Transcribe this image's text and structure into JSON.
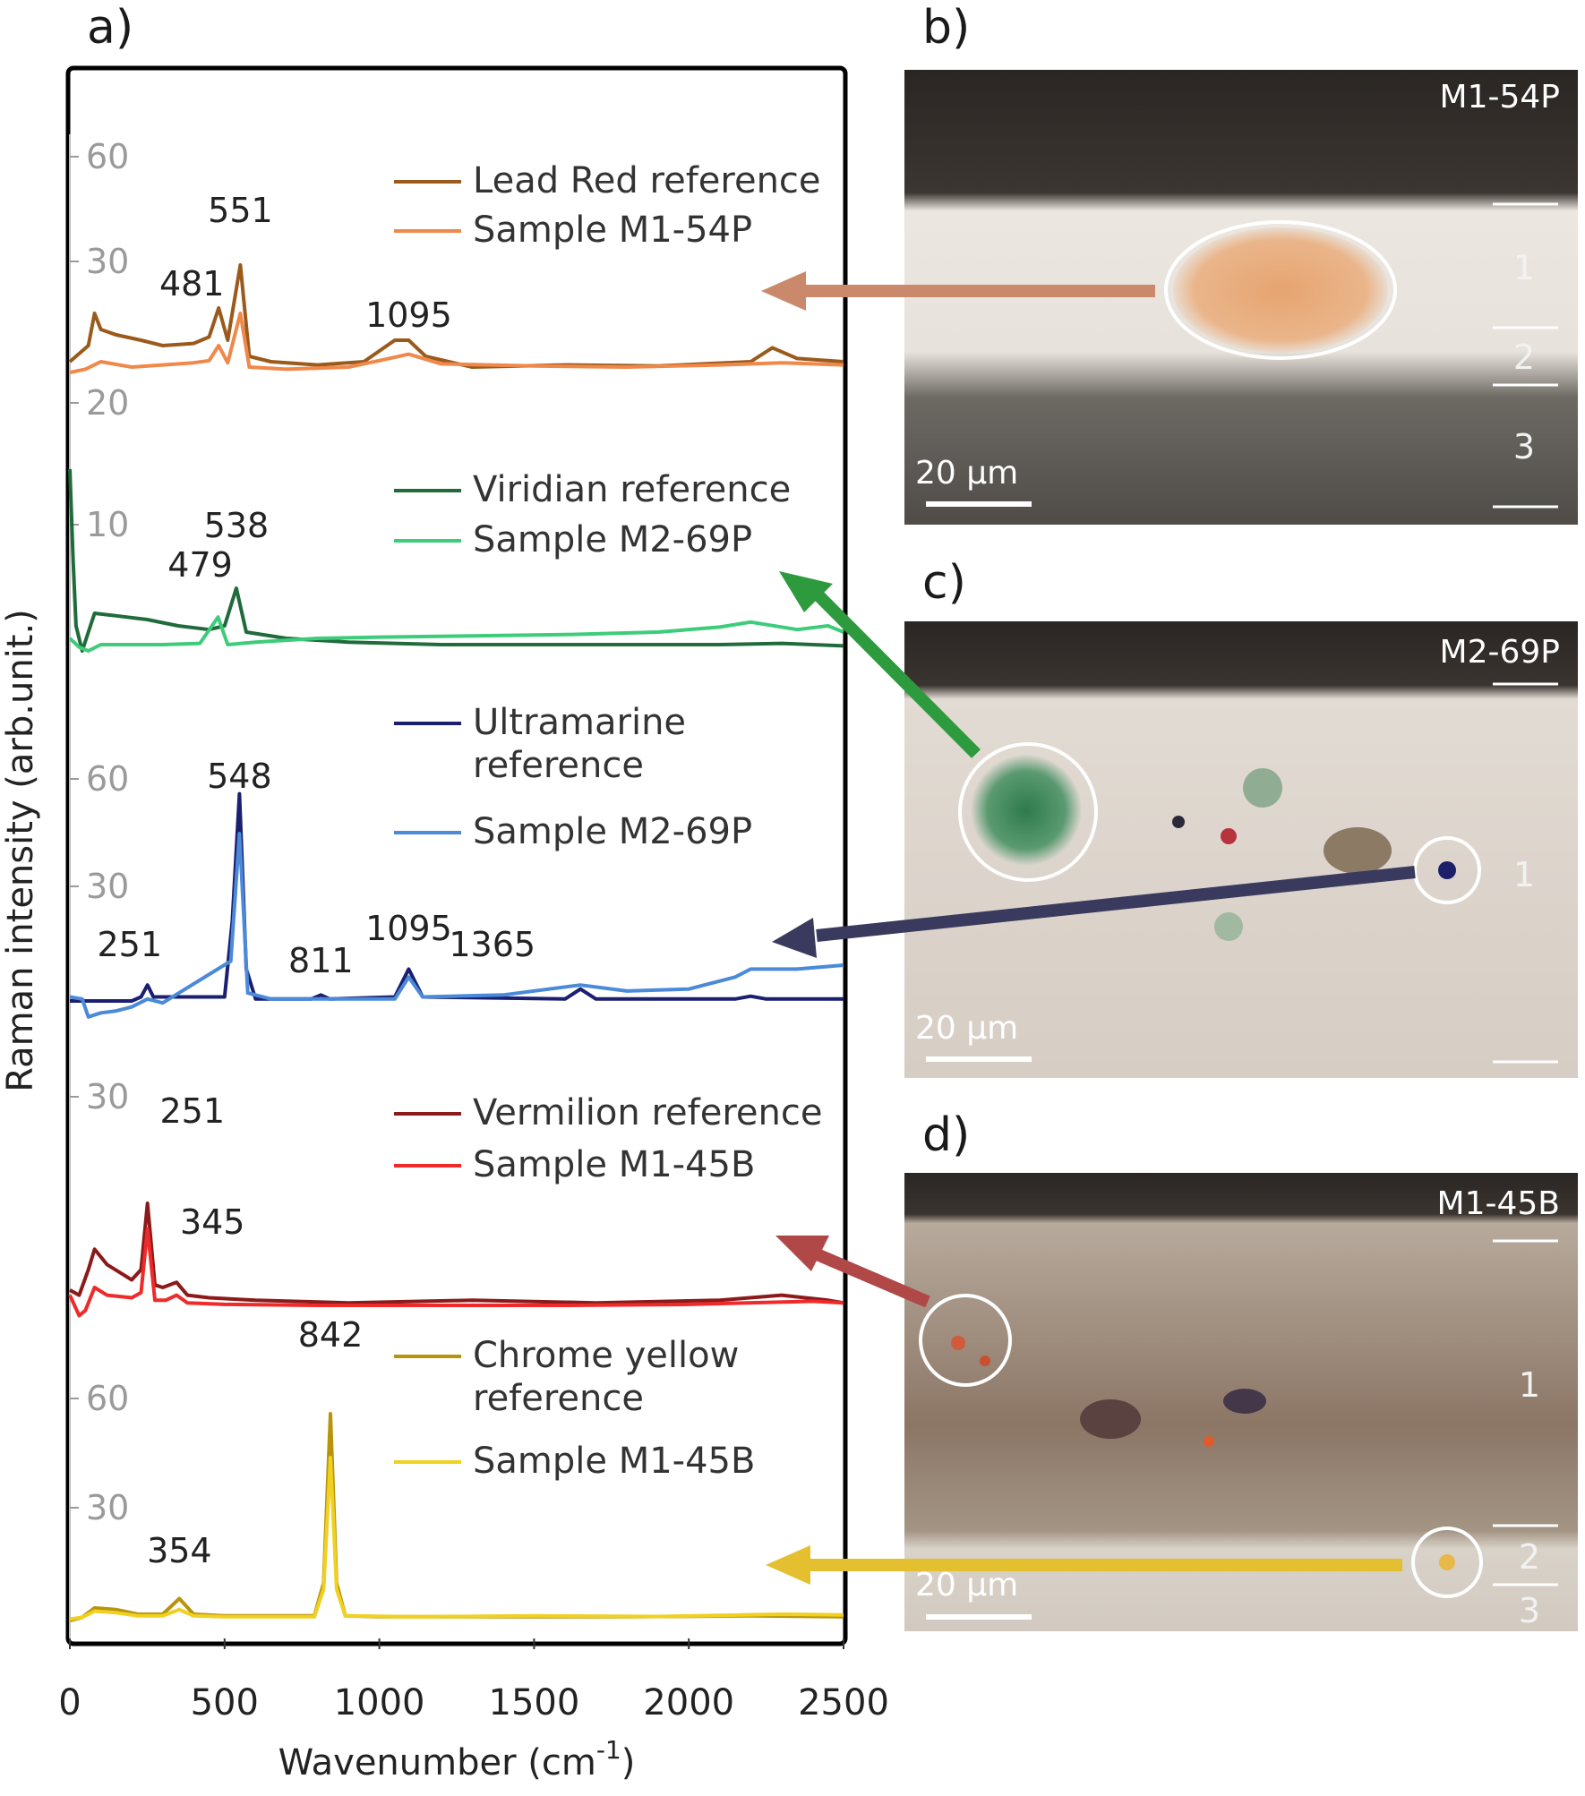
{
  "panel_labels": {
    "a": "a)",
    "b": "b)",
    "c": "c)",
    "d": "d)"
  },
  "chart_data": {
    "type": "line",
    "xlabel": "Wavenumber (cm",
    "xlabel_sup": "-1",
    "xlabel_close": ")",
    "ylabel": "Raman intensity (arb.unit.)",
    "xlim": [
      0,
      2500
    ],
    "x_ticks": [
      "0",
      "500",
      "1000",
      "1500",
      "2000",
      "2500"
    ],
    "grid": false,
    "stacked_panels": [
      {
        "id": "lead-red",
        "y_ticks": [
          "60",
          "30"
        ],
        "legend": [
          {
            "name": "Lead Red reference",
            "color": "#9a5a1c"
          },
          {
            "name": "Sample M1-54P",
            "color": "#f0884a"
          }
        ],
        "peak_labels": [
          "551",
          "481",
          "1095"
        ],
        "series": [
          {
            "name": "Lead Red reference",
            "color": "#9a5a1c",
            "x": [
              0,
              60,
              80,
              100,
              150,
              230,
              300,
              400,
              450,
              481,
              510,
              551,
              580,
              650,
              800,
              950,
              1000,
              1050,
              1095,
              1150,
              1300,
              1600,
              1900,
              2200,
              2270,
              2350,
              2500
            ],
            "y": [
              23.5,
              25,
              28,
              26.5,
              26,
              25.5,
              25,
              25.2,
              25.8,
              28.5,
              25.5,
              32.5,
              24,
              23.5,
              23.2,
              23.5,
              24.5,
              25.5,
              25.5,
              24,
              23,
              23.2,
              23.1,
              23.5,
              24.8,
              23.8,
              23.5
            ]
          },
          {
            "name": "Sample M1-54P",
            "color": "#f0884a",
            "x": [
              0,
              50,
              100,
              200,
              300,
              400,
              450,
              481,
              510,
              551,
              580,
              700,
              900,
              1000,
              1095,
              1200,
              1500,
              1800,
              2100,
              2300,
              2500
            ],
            "y": [
              22.5,
              22.8,
              23.5,
              23,
              23.2,
              23.4,
              23.6,
              25,
              23.4,
              28,
              23,
              22.8,
              23,
              23.6,
              24.2,
              23.3,
              23.1,
              23,
              23.2,
              23.4,
              23.2
            ]
          }
        ]
      },
      {
        "id": "viridian",
        "y_ticks": [
          "20",
          "10"
        ],
        "legend": [
          {
            "name": "Viridian reference",
            "color": "#1f6b3a"
          },
          {
            "name": "Sample M2-69P",
            "color": "#3dcc7a"
          }
        ],
        "peak_labels": [
          "538",
          "479"
        ],
        "series": [
          {
            "name": "Viridian reference",
            "color": "#1f6b3a",
            "x": [
              0,
              10,
              20,
              40,
              60,
              80,
              150,
              250,
              350,
              450,
              500,
              538,
              570,
              700,
              900,
              1200,
              1500,
              1800,
              2100,
              2300,
              2500
            ],
            "y": [
              20,
              13,
              7.5,
              5.5,
              7,
              8.5,
              8.3,
              8,
              7.5,
              7.2,
              7.5,
              10.5,
              7,
              6.5,
              6.2,
              6,
              6,
              6,
              6,
              6.1,
              5.9
            ]
          },
          {
            "name": "Sample M2-69P",
            "color": "#3dcc7a",
            "x": [
              0,
              30,
              60,
              100,
              200,
              300,
              420,
              479,
              510,
              600,
              800,
              1000,
              1300,
              1600,
              1900,
              2100,
              2200,
              2350,
              2450,
              2500
            ],
            "y": [
              6.5,
              5.8,
              5.5,
              6,
              6,
              6,
              6.1,
              8.2,
              6,
              6.2,
              6.5,
              6.6,
              6.7,
              6.8,
              7,
              7.4,
              7.8,
              7.2,
              7.5,
              7
            ]
          }
        ]
      },
      {
        "id": "ultramarine",
        "y_ticks": [
          "60",
          "30"
        ],
        "legend": [
          {
            "name": "Ultramarine reference",
            "lines": [
              "Ultramarine",
              "reference"
            ],
            "color": "#1a1f70"
          },
          {
            "name": "Sample M2-69P",
            "color": "#4a8ad8"
          }
        ],
        "peak_labels": [
          "548",
          "251",
          "811",
          "1095",
          "1365"
        ],
        "series": [
          {
            "name": "Ultramarine reference",
            "color": "#1a1f70",
            "x": [
              0,
              200,
              230,
              251,
              270,
              500,
              525,
              548,
              570,
              600,
              780,
              811,
              840,
              1050,
              1095,
              1140,
              1600,
              1650,
              1700,
              2150,
              2200,
              2250,
              2500
            ],
            "y": [
              0,
              0,
              1,
              4,
              1,
              1,
              20,
              52,
              8,
              0.5,
              0.5,
              1.5,
              0.5,
              1,
              8,
              1,
              0.5,
              3,
              0.5,
              0.5,
              1.2,
              0.5,
              0.5
            ]
          },
          {
            "name": "Sample M2-69P",
            "color": "#4a8ad8",
            "x": [
              0,
              40,
              60,
              100,
              150,
              200,
              251,
              300,
              520,
              548,
              575,
              650,
              1050,
              1095,
              1140,
              1400,
              1650,
              1800,
              2000,
              2150,
              2200,
              2350,
              2500
            ],
            "y": [
              1,
              0.5,
              -4,
              -3,
              -2.5,
              -1.5,
              0.5,
              -0.5,
              10,
              42,
              2,
              0.5,
              0.5,
              6,
              1,
              1.5,
              4,
              2.5,
              3,
              6,
              8,
              8,
              9
            ]
          }
        ]
      },
      {
        "id": "vermilion",
        "y_ticks": [
          "30"
        ],
        "legend": [
          {
            "name": "Vermilion reference",
            "color": "#8c1a1a"
          },
          {
            "name": "Sample M1-45B",
            "color": "#ee2a2a"
          }
        ],
        "peak_labels": [
          "251",
          "345"
        ],
        "series": [
          {
            "name": "Vermilion reference",
            "color": "#8c1a1a",
            "x": [
              0,
              30,
              60,
              80,
              120,
              200,
              230,
              251,
              275,
              300,
              345,
              380,
              450,
              600,
              900,
              1300,
              1700,
              2100,
              2300,
              2450,
              2500
            ],
            "y": [
              5,
              4,
              9,
              13,
              10,
              7,
              9,
              22,
              6,
              5.5,
              6.5,
              4,
              3.5,
              3,
              2.5,
              3,
              2.5,
              3,
              4,
              3,
              2.5
            ]
          },
          {
            "name": "Sample M1-45B",
            "color": "#ee2a2a",
            "x": [
              0,
              30,
              50,
              80,
              120,
              200,
              230,
              251,
              275,
              310,
              345,
              380,
              500,
              800,
              1200,
              1600,
              2000,
              2400,
              2500
            ],
            "y": [
              4,
              0,
              1,
              5.5,
              4,
              3.5,
              4.5,
              17,
              3,
              3,
              4,
              2.5,
              2.2,
              2,
              2,
              2,
              2.2,
              2.8,
              2.5
            ]
          }
        ]
      },
      {
        "id": "chrome-yellow",
        "y_ticks": [
          "60",
          "30"
        ],
        "legend": [
          {
            "name": "Chrome yellow reference",
            "lines": [
              "Chrome yellow",
              "reference"
            ],
            "color": "#b8940a"
          },
          {
            "name": "Sample M1-45B",
            "color": "#f0d020"
          }
        ],
        "peak_labels": [
          "842",
          "354"
        ],
        "series": [
          {
            "name": "Chrome yellow reference",
            "color": "#b8940a",
            "x": [
              0,
              40,
              80,
              150,
              220,
              300,
              354,
              400,
              500,
              790,
              820,
              842,
              862,
              890,
              1000,
              1400,
              1800,
              2200,
              2500
            ],
            "y": [
              0,
              1,
              4,
              3.5,
              2,
              2,
              7,
              2,
              1.5,
              1.5,
              12,
              66,
              12,
              1.5,
              1.2,
              1.2,
              1.2,
              1.5,
              1.2
            ]
          },
          {
            "name": "Sample M1-45B",
            "color": "#f0d020",
            "x": [
              0,
              40,
              80,
              150,
              220,
              300,
              354,
              400,
              500,
              790,
              820,
              842,
              862,
              890,
              1100,
              1500,
              1900,
              2300,
              2500
            ],
            "y": [
              0.5,
              1,
              3,
              2.5,
              1.5,
              1.5,
              3.5,
              1.5,
              1.2,
              1.2,
              10,
              52,
              10,
              1.5,
              1.2,
              1.5,
              1.3,
              2,
              1.8
            ]
          }
        ]
      }
    ]
  },
  "micrographs": [
    {
      "id": "b",
      "sample": "M1-54P",
      "scale": "20 µm",
      "layers": [
        "1",
        "2",
        "3"
      ]
    },
    {
      "id": "c",
      "sample": "M2-69P",
      "scale": "20 µm",
      "layers": [
        "1"
      ]
    },
    {
      "id": "d",
      "sample": "M1-45B",
      "scale": "20 µm",
      "layers": [
        "1",
        "2",
        "3"
      ]
    }
  ],
  "arrow_colors": [
    "#c9896a",
    "#2e9a3e",
    "#3a3a5e",
    "#b04848",
    "#e4c030"
  ]
}
